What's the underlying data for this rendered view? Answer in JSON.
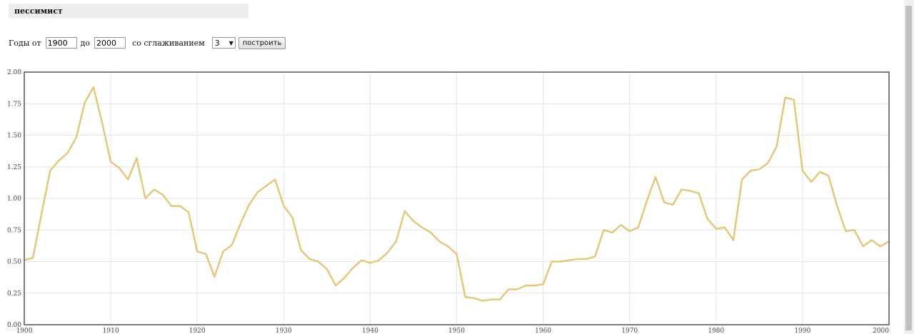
{
  "query": {
    "title": "пессимист"
  },
  "controls": {
    "years_label": "Годы от",
    "from_value": "1900",
    "to_label": "до",
    "to_value": "2000",
    "smoothing_label": "со сглаживанием",
    "smoothing_value": "3",
    "smoothing_arrow": "▼",
    "build_label": "построить"
  },
  "chart_data": {
    "type": "line",
    "title": "",
    "xlabel": "",
    "ylabel": "",
    "xlim": [
      1900,
      2000
    ],
    "ylim": [
      0,
      2
    ],
    "grid": true,
    "x_ticks": [
      "1900",
      "1910",
      "1920",
      "1930",
      "1940",
      "1950",
      "1960",
      "1970",
      "1980",
      "1990",
      "2000"
    ],
    "y_ticks": [
      "0.00",
      "0.25",
      "0.50",
      "0.75",
      "1.00",
      "1.25",
      "1.50",
      "1.75",
      "2.00"
    ],
    "line_color": "#e3c77d",
    "series": [
      {
        "x": [
          1900,
          1901,
          1902,
          1903,
          1904,
          1905,
          1906,
          1907,
          1908,
          1909,
          1910,
          1911,
          1912,
          1913,
          1914,
          1915,
          1916,
          1917,
          1918,
          1919,
          1920,
          1921,
          1922,
          1923,
          1924,
          1925,
          1926,
          1927,
          1928,
          1929,
          1930,
          1931,
          1932,
          1933,
          1934,
          1935,
          1936,
          1937,
          1938,
          1939,
          1940,
          1941,
          1942,
          1943,
          1944,
          1945,
          1946,
          1947,
          1948,
          1949,
          1950,
          1951,
          1952,
          1953,
          1954,
          1955,
          1956,
          1957,
          1958,
          1959,
          1960,
          1961,
          1962,
          1963,
          1964,
          1965,
          1966,
          1967,
          1968,
          1969,
          1970,
          1971,
          1972,
          1973,
          1974,
          1975,
          1976,
          1977,
          1978,
          1979,
          1980,
          1981,
          1982,
          1983,
          1984,
          1985,
          1986,
          1987,
          1988,
          1989,
          1990,
          1991,
          1992,
          1993,
          1994,
          1995,
          1996,
          1997,
          1998,
          1999,
          2000
        ],
        "values": [
          0.51,
          0.53,
          0.88,
          1.22,
          1.3,
          1.36,
          1.48,
          1.76,
          1.88,
          1.6,
          1.29,
          1.24,
          1.15,
          1.32,
          1.0,
          1.07,
          1.03,
          0.94,
          0.94,
          0.89,
          0.58,
          0.56,
          0.38,
          0.58,
          0.63,
          0.8,
          0.95,
          1.05,
          1.1,
          1.15,
          0.94,
          0.85,
          0.59,
          0.52,
          0.5,
          0.44,
          0.31,
          0.37,
          0.45,
          0.51,
          0.49,
          0.51,
          0.57,
          0.66,
          0.9,
          0.82,
          0.77,
          0.73,
          0.66,
          0.62,
          0.56,
          0.22,
          0.21,
          0.19,
          0.2,
          0.2,
          0.28,
          0.28,
          0.31,
          0.31,
          0.32,
          0.5,
          0.5,
          0.51,
          0.52,
          0.52,
          0.54,
          0.75,
          0.73,
          0.79,
          0.74,
          0.77,
          0.98,
          1.17,
          0.97,
          0.95,
          1.07,
          1.06,
          1.04,
          0.84,
          0.76,
          0.77,
          0.67,
          1.15,
          1.22,
          1.23,
          1.28,
          1.41,
          1.8,
          1.78,
          1.22,
          1.13,
          1.21,
          1.18,
          0.94,
          0.74,
          0.75,
          0.62,
          0.67,
          0.62,
          0.66
        ]
      }
    ]
  }
}
